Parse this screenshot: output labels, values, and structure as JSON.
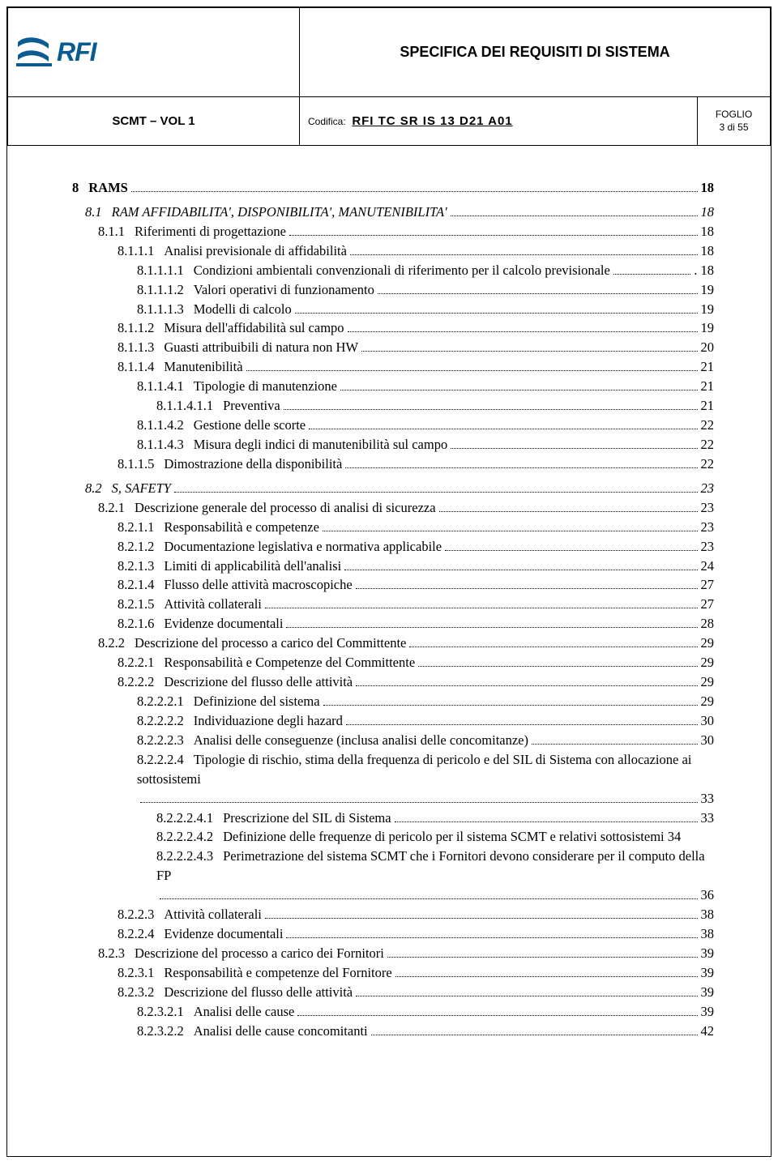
{
  "header": {
    "logo_text": "RFI",
    "logo_color": "#0a5b8f",
    "title": "SPECIFICA DEI REQUISITI DI SISTEMA",
    "doc_ref": "SCMT – VOL 1",
    "codifica_label": "Codifica:",
    "codifica_values": "RFI  TC  SR  IS  13  D21  A01",
    "foglio_label": "FOGLIO",
    "foglio_value": "3 di 55"
  },
  "toc": [
    {
      "level": 0,
      "num": "8",
      "title": "RAMS",
      "page": "18"
    },
    {
      "spacer": true
    },
    {
      "level": 1,
      "num": "8.1",
      "title": "RAM AFFIDABILITA', DISPONIBILITA', MANUTENIBILITA'",
      "page": "18"
    },
    {
      "level": 2,
      "num": "8.1.1",
      "title": "Riferimenti di progettazione",
      "page": "18"
    },
    {
      "level": 3,
      "num": "8.1.1.1",
      "title": "Analisi previsionale di affidabilità",
      "page": "18"
    },
    {
      "level": 4,
      "num": "8.1.1.1.1",
      "title": "Condizioni ambientali convenzionali di riferimento per il calcolo previsionale",
      "page": ". 18"
    },
    {
      "level": 4,
      "num": "8.1.1.1.2",
      "title": "Valori operativi di funzionamento",
      "page": "19"
    },
    {
      "level": 4,
      "num": "8.1.1.1.3",
      "title": "Modelli di calcolo",
      "page": "19"
    },
    {
      "level": 3,
      "num": "8.1.1.2",
      "title": "Misura dell'affidabilità sul campo",
      "page": "19"
    },
    {
      "level": 3,
      "num": "8.1.1.3",
      "title": "Guasti attribuibili di natura non HW",
      "page": "20"
    },
    {
      "level": 3,
      "num": "8.1.1.4",
      "title": "Manutenibilità",
      "page": "21"
    },
    {
      "level": 4,
      "num": "8.1.1.4.1",
      "title": "Tipologie di manutenzione",
      "page": "21"
    },
    {
      "level": 5,
      "num": "8.1.1.4.1.1",
      "title": "Preventiva",
      "page": "21"
    },
    {
      "level": 4,
      "num": "8.1.1.4.2",
      "title": "Gestione delle scorte",
      "page": "22"
    },
    {
      "level": 4,
      "num": "8.1.1.4.3",
      "title": "Misura degli indici di manutenibilità sul campo",
      "page": "22"
    },
    {
      "level": 3,
      "num": "8.1.1.5",
      "title": "Dimostrazione della disponibilità",
      "page": "22"
    },
    {
      "spacer": true
    },
    {
      "level": 1,
      "num": "8.2",
      "title": "S, SAFETY",
      "page": "23"
    },
    {
      "level": 2,
      "num": "8.2.1",
      "title": "Descrizione generale del processo di analisi di sicurezza",
      "page": "23"
    },
    {
      "level": 3,
      "num": "8.2.1.1",
      "title": "Responsabilità e competenze",
      "page": "23"
    },
    {
      "level": 3,
      "num": "8.2.1.2",
      "title": "Documentazione legislativa e normativa applicabile",
      "page": "23"
    },
    {
      "level": 3,
      "num": "8.2.1.3",
      "title": "Limiti di applicabilità dell'analisi",
      "page": "24"
    },
    {
      "level": 3,
      "num": "8.2.1.4",
      "title": "Flusso delle attività macroscopiche",
      "page": "27"
    },
    {
      "level": 3,
      "num": "8.2.1.5",
      "title": "Attività collaterali",
      "page": "27"
    },
    {
      "level": 3,
      "num": "8.2.1.6",
      "title": "Evidenze documentali",
      "page": "28"
    },
    {
      "level": 2,
      "num": "8.2.2",
      "title": "Descrizione del processo a carico del Committente",
      "page": "29"
    },
    {
      "level": 3,
      "num": "8.2.2.1",
      "title": "Responsabilità e Competenze del Committente",
      "page": "29"
    },
    {
      "level": 3,
      "num": "8.2.2.2",
      "title": "Descrizione del flusso delle attività",
      "page": "29"
    },
    {
      "level": 4,
      "num": "8.2.2.2.1",
      "title": "Definizione del sistema",
      "page": "29"
    },
    {
      "level": 4,
      "num": "8.2.2.2.2",
      "title": "Individuazione degli hazard",
      "page": "30"
    },
    {
      "level": 4,
      "num": "8.2.2.2.3",
      "title": "Analisi delle conseguenze (inclusa analisi delle concomitanze)",
      "page": "30"
    },
    {
      "level": 4,
      "num": "8.2.2.2.4",
      "title": "Tipologie di rischio, stima della frequenza di pericolo e del SIL di Sistema con allocazione ai sottosistemi",
      "page": "33",
      "wrap": true
    },
    {
      "level": 5,
      "num": "8.2.2.2.4.1",
      "title": "Prescrizione del SIL di Sistema",
      "page": "33"
    },
    {
      "level": 5,
      "num": "8.2.2.2.4.2",
      "title": "Definizione delle frequenze di pericolo per il sistema SCMT e relativi sottosistemi  34",
      "page": "",
      "wrap": true
    },
    {
      "level": 5,
      "num": "8.2.2.2.4.3",
      "title": "Perimetrazione del sistema SCMT che i Fornitori devono considerare per il computo della FP",
      "page": "36",
      "wrap": true
    },
    {
      "level": 3,
      "num": "8.2.2.3",
      "title": "Attività collaterali",
      "page": "38"
    },
    {
      "level": 3,
      "num": "8.2.2.4",
      "title": "Evidenze documentali",
      "page": "38"
    },
    {
      "level": 2,
      "num": "8.2.3",
      "title": "Descrizione del processo a carico dei Fornitori",
      "page": "39"
    },
    {
      "level": 3,
      "num": "8.2.3.1",
      "title": "Responsabilità e competenze del Fornitore",
      "page": "39"
    },
    {
      "level": 3,
      "num": "8.2.3.2",
      "title": "Descrizione del flusso delle attività",
      "page": "39"
    },
    {
      "level": 4,
      "num": "8.2.3.2.1",
      "title": "Analisi delle cause",
      "page": "39"
    },
    {
      "level": 4,
      "num": "8.2.3.2.2",
      "title": "Analisi delle cause concomitanti",
      "page": "42"
    }
  ]
}
